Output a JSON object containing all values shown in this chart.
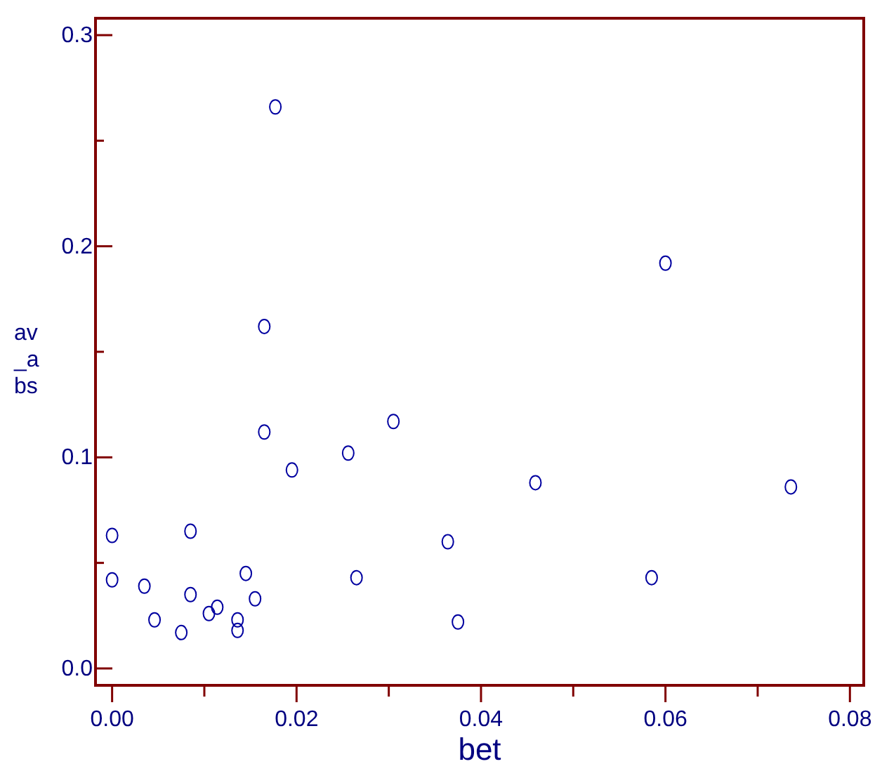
{
  "chart_data": {
    "type": "scatter",
    "xlabel": "bet",
    "ylabel": "av_abs",
    "marker": "circle",
    "grid": false,
    "xlim": [
      -0.0018,
      0.0815
    ],
    "ylim": [
      -0.008,
      0.308
    ],
    "xticks": [
      {
        "value": 0,
        "label": "0.00"
      },
      {
        "value": 0.01,
        "label": null
      },
      {
        "value": 0.02,
        "label": "0.02"
      },
      {
        "value": 0.03,
        "label": null
      },
      {
        "value": 0.04,
        "label": "0.04"
      },
      {
        "value": 0.05,
        "label": null
      },
      {
        "value": 0.06,
        "label": "0.06"
      },
      {
        "value": 0.07,
        "label": null
      },
      {
        "value": 0.08,
        "label": "0.08"
      }
    ],
    "yticks": [
      {
        "value": 0,
        "label": "0.0"
      },
      {
        "value": 0.05,
        "label": null
      },
      {
        "value": 0.1,
        "label": "0.1"
      },
      {
        "value": 0.15,
        "label": null
      },
      {
        "value": 0.2,
        "label": "0.2"
      },
      {
        "value": 0.25,
        "label": null
      },
      {
        "value": 0.3,
        "label": "0.3"
      }
    ],
    "series": [
      {
        "color": "#0000a0",
        "x": [
          0.0177,
          0.06,
          0.0165,
          0.0165,
          0.0305,
          0.0195,
          0.0256,
          0.0459,
          0.0736,
          0.0,
          0.0085,
          0.0364,
          0.0,
          0.0035,
          0.0085,
          0.0145,
          0.0265,
          0.0585,
          0.0046,
          0.0075,
          0.0105,
          0.0114,
          0.0136,
          0.0136,
          0.0155,
          0.0375
        ],
        "values": [
          0.266,
          0.192,
          0.162,
          0.112,
          0.117,
          0.094,
          0.102,
          0.088,
          0.086,
          0.063,
          0.065,
          0.06,
          0.042,
          0.039,
          0.035,
          0.045,
          0.043,
          0.043,
          0.023,
          0.017,
          0.026,
          0.029,
          0.023,
          0.018,
          0.033,
          0.022
        ]
      }
    ]
  }
}
